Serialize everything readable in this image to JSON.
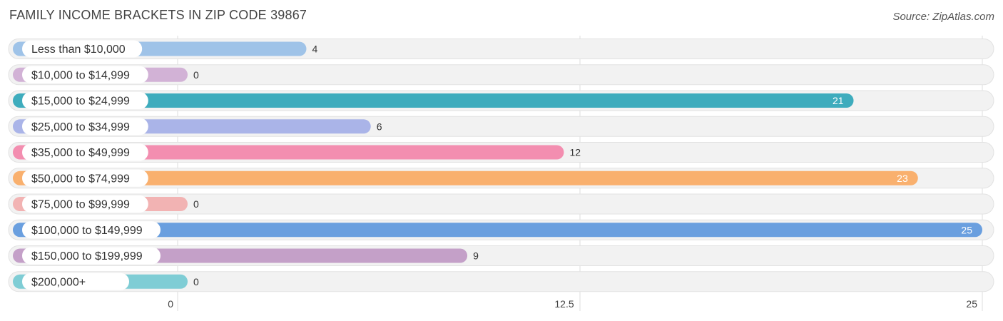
{
  "header": {
    "title": "FAMILY INCOME BRACKETS IN ZIP CODE 39867",
    "source": "Source: ZipAtlas.com"
  },
  "chart_data": {
    "type": "bar",
    "orientation": "horizontal",
    "title": "FAMILY INCOME BRACKETS IN ZIP CODE 39867",
    "categories": [
      "Less than $10,000",
      "$10,000 to $14,999",
      "$15,000 to $24,999",
      "$25,000 to $34,999",
      "$35,000 to $49,999",
      "$50,000 to $74,999",
      "$75,000 to $99,999",
      "$100,000 to $149,999",
      "$150,000 to $199,999",
      "$200,000+"
    ],
    "values": [
      4,
      0,
      21,
      6,
      12,
      23,
      0,
      25,
      9,
      0
    ],
    "colors": [
      "#9fc3e8",
      "#d2b2d6",
      "#3eacbd",
      "#aab4e8",
      "#f38eb0",
      "#f9b06e",
      "#f2b3b3",
      "#6a9fdf",
      "#c4a0c8",
      "#7fcdd5"
    ],
    "xlim": [
      0,
      25
    ],
    "xticks": [
      0,
      12.5,
      25
    ],
    "xtick_labels": [
      "0",
      "12.5",
      "25"
    ],
    "grid": true,
    "legend": "none"
  }
}
